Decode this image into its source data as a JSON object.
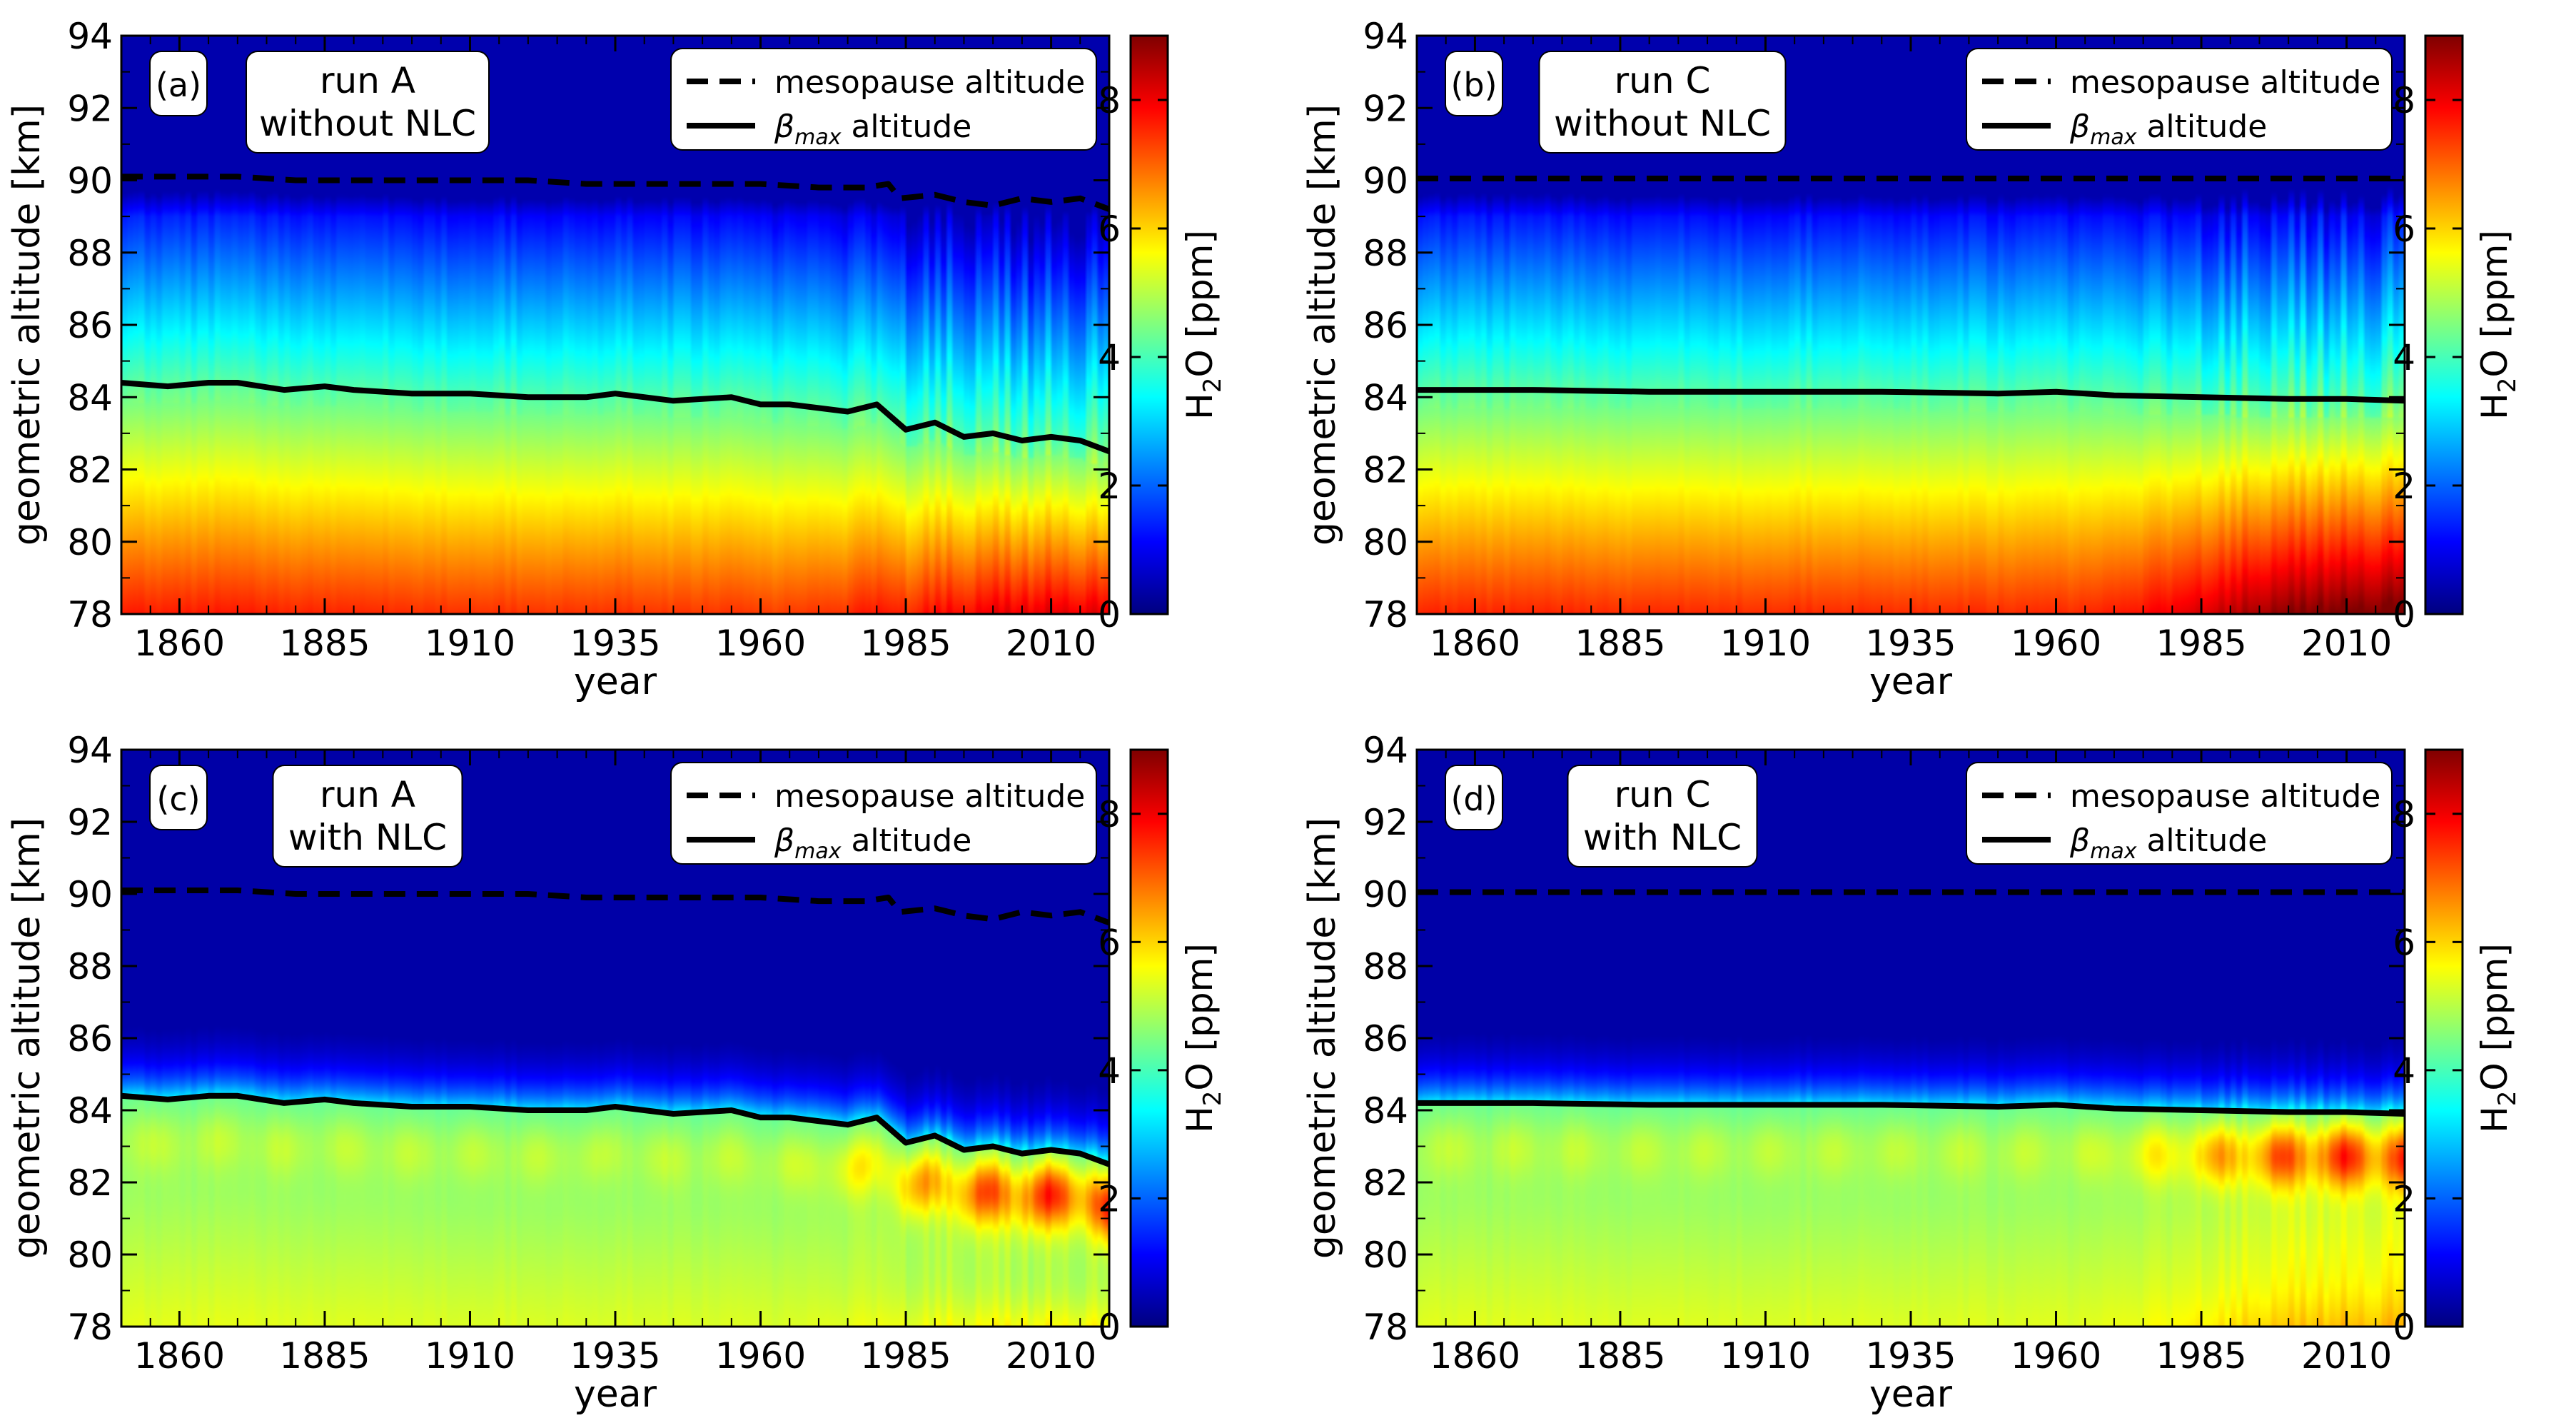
{
  "colormap": [
    "#00007f",
    "#0000ff",
    "#007fff",
    "#00ffff",
    "#7fff7f",
    "#ffff00",
    "#ff7f00",
    "#ff0000",
    "#7f0000"
  ],
  "colorbar": {
    "label_main": "H",
    "label_sub": "2",
    "label_rest": "O [ppm]",
    "vmin": 0,
    "vmax": 9,
    "ticks": [
      "0",
      "2",
      "4",
      "6",
      "8"
    ]
  },
  "legend": {
    "dashed_label": "mesopause altitude",
    "solid_label_beta": "β",
    "solid_label_sub": "max",
    "solid_label_rest": " altitude"
  },
  "chart_data": [
    {
      "type": "heatmap",
      "panel": "(a)",
      "title_line1": "run A",
      "title_line2": "without NLC",
      "nlc": false,
      "trend": "A",
      "xlabel": "year",
      "ylabel": "geometric altitude [km]",
      "xlim": [
        1850,
        2020
      ],
      "ylim": [
        78,
        94
      ],
      "xticks": [
        1860,
        1885,
        1910,
        1935,
        1960,
        1985,
        2010
      ],
      "yticks": [
        78,
        80,
        82,
        84,
        86,
        88,
        90,
        92,
        94
      ],
      "series": [
        {
          "name": "mesopause altitude",
          "style": "dashed",
          "x": [
            1850,
            1860,
            1870,
            1880,
            1890,
            1900,
            1910,
            1920,
            1930,
            1940,
            1950,
            1960,
            1970,
            1978,
            1982,
            1984,
            1990,
            1995,
            2000,
            2005,
            2010,
            2015,
            2020
          ],
          "y": [
            90.1,
            90.1,
            90.1,
            90.0,
            90.0,
            90.0,
            90.0,
            90.0,
            89.9,
            89.9,
            89.9,
            89.9,
            89.8,
            89.8,
            89.9,
            89.5,
            89.6,
            89.4,
            89.3,
            89.5,
            89.4,
            89.5,
            89.2
          ]
        },
        {
          "name": "β max altitude",
          "style": "solid",
          "x": [
            1850,
            1858,
            1865,
            1870,
            1878,
            1885,
            1890,
            1900,
            1910,
            1920,
            1930,
            1935,
            1945,
            1955,
            1960,
            1965,
            1975,
            1980,
            1985,
            1990,
            1995,
            2000,
            2005,
            2010,
            2015,
            2020
          ],
          "y": [
            84.4,
            84.3,
            84.4,
            84.4,
            84.2,
            84.3,
            84.2,
            84.1,
            84.1,
            84.0,
            84.0,
            84.1,
            83.9,
            84.0,
            83.8,
            83.8,
            83.6,
            83.8,
            83.1,
            83.3,
            82.9,
            83.0,
            82.8,
            82.9,
            82.8,
            82.5
          ]
        }
      ]
    },
    {
      "type": "heatmap",
      "panel": "(b)",
      "title_line1": "run C",
      "title_line2": "without NLC",
      "nlc": false,
      "trend": "C",
      "xlabel": "year",
      "ylabel": "geometric altitude [km]",
      "xlim": [
        1850,
        2020
      ],
      "ylim": [
        78,
        94
      ],
      "xticks": [
        1860,
        1885,
        1910,
        1935,
        1960,
        1985,
        2010
      ],
      "yticks": [
        78,
        80,
        82,
        84,
        86,
        88,
        90,
        92,
        94
      ],
      "series": [
        {
          "name": "mesopause altitude",
          "style": "dashed",
          "x": [
            1850,
            2020
          ],
          "y": [
            90.05,
            90.05
          ]
        },
        {
          "name": "β max altitude",
          "style": "solid",
          "x": [
            1850,
            1870,
            1890,
            1910,
            1930,
            1950,
            1960,
            1970,
            1985,
            2000,
            2010,
            2020
          ],
          "y": [
            84.2,
            84.2,
            84.15,
            84.15,
            84.15,
            84.1,
            84.15,
            84.05,
            84.0,
            83.95,
            83.95,
            83.9
          ]
        }
      ]
    },
    {
      "type": "heatmap",
      "panel": "(c)",
      "title_line1": "run A",
      "title_line2": "with NLC",
      "nlc": true,
      "trend": "A",
      "xlabel": "year",
      "ylabel": "geometric altitude [km]",
      "xlim": [
        1850,
        2020
      ],
      "ylim": [
        78,
        94
      ],
      "xticks": [
        1860,
        1885,
        1910,
        1935,
        1960,
        1985,
        2010
      ],
      "yticks": [
        78,
        80,
        82,
        84,
        86,
        88,
        90,
        92,
        94
      ],
      "series": [
        {
          "name": "mesopause altitude",
          "style": "dashed",
          "x": [
            1850,
            1860,
            1870,
            1880,
            1890,
            1900,
            1910,
            1920,
            1930,
            1940,
            1950,
            1960,
            1970,
            1978,
            1982,
            1984,
            1990,
            1995,
            2000,
            2005,
            2010,
            2015,
            2020
          ],
          "y": [
            90.1,
            90.1,
            90.1,
            90.0,
            90.0,
            90.0,
            90.0,
            90.0,
            89.9,
            89.9,
            89.9,
            89.9,
            89.8,
            89.8,
            89.9,
            89.5,
            89.6,
            89.4,
            89.3,
            89.5,
            89.4,
            89.5,
            89.2
          ]
        },
        {
          "name": "β max altitude",
          "style": "solid",
          "x": [
            1850,
            1858,
            1865,
            1870,
            1878,
            1885,
            1890,
            1900,
            1910,
            1920,
            1930,
            1935,
            1945,
            1955,
            1960,
            1965,
            1975,
            1980,
            1985,
            1990,
            1995,
            2000,
            2005,
            2010,
            2015,
            2020
          ],
          "y": [
            84.4,
            84.3,
            84.4,
            84.4,
            84.2,
            84.3,
            84.2,
            84.1,
            84.1,
            84.0,
            84.0,
            84.1,
            83.9,
            84.0,
            83.8,
            83.8,
            83.6,
            83.8,
            83.1,
            83.3,
            82.9,
            83.0,
            82.8,
            82.9,
            82.8,
            82.5
          ]
        }
      ]
    },
    {
      "type": "heatmap",
      "panel": "(d)",
      "title_line1": "run C",
      "title_line2": "with NLC",
      "nlc": true,
      "trend": "C",
      "xlabel": "year",
      "ylabel": "geometric altitude [km]",
      "xlim": [
        1850,
        2020
      ],
      "ylim": [
        78,
        94
      ],
      "xticks": [
        1860,
        1885,
        1910,
        1935,
        1960,
        1985,
        2010
      ],
      "yticks": [
        78,
        80,
        82,
        84,
        86,
        88,
        90,
        92,
        94
      ],
      "series": [
        {
          "name": "mesopause altitude",
          "style": "dashed",
          "x": [
            1850,
            2020
          ],
          "y": [
            90.05,
            90.05
          ]
        },
        {
          "name": "β max altitude",
          "style": "solid",
          "x": [
            1850,
            1870,
            1890,
            1910,
            1930,
            1950,
            1960,
            1970,
            1985,
            2000,
            2010,
            2020
          ],
          "y": [
            84.2,
            84.2,
            84.15,
            84.15,
            84.15,
            84.1,
            84.15,
            84.05,
            84.0,
            83.95,
            83.95,
            83.9
          ]
        }
      ]
    }
  ]
}
